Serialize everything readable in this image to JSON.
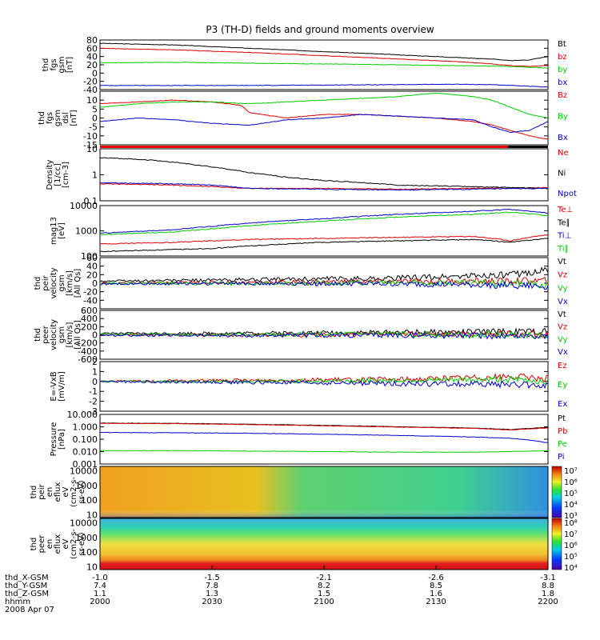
{
  "title": "P3 (TH-D) fields and ground moments overview",
  "chart_data": [
    {
      "id": "fgs_gsm",
      "type": "line",
      "ylabel": [
        "thd",
        "fgs",
        "gsm",
        "[nT]"
      ],
      "ylim": [
        -40,
        80
      ],
      "yticks": [
        80,
        60,
        40,
        20,
        0,
        -20,
        -40
      ],
      "x_range": [
        0,
        120
      ],
      "series": [
        {
          "name": "Bt",
          "color": "#000000",
          "x": [
            0,
            20,
            40,
            60,
            80,
            95,
            105,
            110,
            115,
            120
          ],
          "y": [
            72,
            68,
            60,
            52,
            44,
            38,
            34,
            30,
            32,
            40
          ]
        },
        {
          "name": "bz",
          "color": "#dd0000",
          "x": [
            0,
            20,
            40,
            60,
            80,
            95,
            105,
            110,
            115,
            120
          ],
          "y": [
            60,
            56,
            50,
            42,
            34,
            28,
            22,
            18,
            16,
            18
          ]
        },
        {
          "name": "by",
          "color": "#00cc00",
          "x": [
            0,
            20,
            40,
            60,
            80,
            95,
            105,
            110,
            115,
            120
          ],
          "y": [
            25,
            26,
            24,
            22,
            20,
            18,
            17,
            16,
            14,
            12
          ]
        },
        {
          "name": "bx",
          "color": "#0000cc",
          "x": [
            0,
            20,
            40,
            60,
            80,
            95,
            105,
            110,
            115,
            120
          ],
          "y": [
            -30,
            -30,
            -30,
            -29,
            -28,
            -27,
            -28,
            -30,
            -32,
            -34
          ]
        }
      ]
    },
    {
      "id": "fgs_dsl",
      "type": "line",
      "ylabel": [
        "thd",
        "fgs",
        "gsm",
        "dsl",
        "[nT]"
      ],
      "ylim": [
        -15,
        15
      ],
      "yticks": [
        10,
        5,
        0,
        -5,
        -10,
        -15
      ],
      "x_range": [
        0,
        120
      ],
      "series": [
        {
          "name": "Bz",
          "color": "#dd0000",
          "x": [
            0,
            10,
            20,
            30,
            38,
            40,
            50,
            60,
            70,
            80,
            90,
            100,
            105,
            110,
            115,
            120
          ],
          "y": [
            8,
            9,
            10,
            9,
            7,
            3,
            0,
            2,
            2,
            1,
            0,
            -2,
            -4,
            -7,
            -10,
            -12
          ]
        },
        {
          "name": "By",
          "color": "#00cc00",
          "x": [
            0,
            10,
            20,
            30,
            40,
            50,
            60,
            70,
            80,
            90,
            95,
            100,
            105,
            110,
            115,
            120
          ],
          "y": [
            6,
            8,
            9,
            9,
            8,
            9,
            10,
            11,
            12,
            14,
            13,
            12,
            10,
            6,
            2,
            0
          ]
        },
        {
          "name": "Bx",
          "color": "#0000cc",
          "x": [
            0,
            10,
            20,
            30,
            40,
            50,
            60,
            70,
            80,
            90,
            100,
            105,
            110,
            115,
            120
          ],
          "y": [
            -2,
            0,
            -1,
            -3,
            -4,
            -1,
            0,
            2,
            1,
            0,
            -1,
            -5,
            -8,
            -7,
            -2
          ]
        }
      ]
    },
    {
      "id": "density",
      "type": "line",
      "scale": "log",
      "ylabel": [
        "Density",
        "[1/cc]",
        "[cm-3]"
      ],
      "ylim": [
        0.1,
        10
      ],
      "yticks": [
        10.0,
        1.0,
        0.1
      ],
      "x_range": [
        0,
        120
      ],
      "series": [
        {
          "name": "Ne",
          "color": "#dd0000",
          "x": [
            0,
            20,
            30,
            40,
            60,
            80,
            100,
            120
          ],
          "y": [
            0.45,
            0.4,
            0.35,
            0.3,
            0.3,
            0.28,
            0.3,
            0.32
          ]
        },
        {
          "name": "Ni",
          "color": "#000000",
          "x": [
            0,
            10,
            20,
            30,
            40,
            50,
            60,
            80,
            100,
            120
          ],
          "y": [
            4.5,
            4,
            3,
            2,
            1.2,
            0.8,
            0.6,
            0.4,
            0.35,
            0.3
          ]
        },
        {
          "name": "Npot",
          "color": "#0000cc",
          "x": [
            0,
            20,
            30,
            40,
            60,
            80,
            100,
            120
          ],
          "y": [
            0.5,
            0.45,
            0.4,
            0.3,
            0.28,
            0.26,
            0.28,
            0.3
          ]
        }
      ]
    },
    {
      "id": "temp",
      "type": "line",
      "scale": "log",
      "ylabel": [
        "mag13",
        "[eV]"
      ],
      "ylim": [
        100,
        10000
      ],
      "yticks": [
        10000,
        1000,
        100
      ],
      "x_range": [
        0,
        120
      ],
      "series": [
        {
          "name": "Te⊥",
          "color": "#dd0000",
          "x": [
            0,
            20,
            30,
            40,
            60,
            80,
            100,
            110,
            120
          ],
          "y": [
            300,
            350,
            400,
            450,
            500,
            550,
            600,
            400,
            700
          ]
        },
        {
          "name": "Te∥",
          "color": "#000000",
          "x": [
            0,
            20,
            30,
            40,
            60,
            80,
            100,
            110,
            120
          ],
          "y": [
            150,
            180,
            200,
            250,
            350,
            400,
            450,
            350,
            500
          ]
        },
        {
          "name": "Ti⊥",
          "color": "#0000cc",
          "x": [
            0,
            20,
            30,
            40,
            60,
            80,
            100,
            110,
            120
          ],
          "y": [
            800,
            1100,
            1500,
            2000,
            3000,
            4500,
            6000,
            7000,
            5000
          ]
        },
        {
          "name": "Ti∥",
          "color": "#00cc00",
          "x": [
            0,
            20,
            30,
            40,
            60,
            80,
            100,
            110,
            120
          ],
          "y": [
            700,
            900,
            1200,
            1600,
            2400,
            3500,
            4500,
            5500,
            4000
          ]
        }
      ]
    },
    {
      "id": "peir_velocity",
      "type": "line",
      "ylabel": [
        "thd",
        "peir",
        "velocity",
        "gsm",
        "[km/s]",
        "[All Qs]"
      ],
      "ylim": [
        -60,
        60
      ],
      "yticks": [
        60,
        40,
        20,
        0,
        -20,
        -40
      ],
      "x_range": [
        0,
        120
      ],
      "series": [
        {
          "name": "Vt",
          "color": "#000000",
          "x": [
            0,
            40,
            80,
            110,
            120
          ],
          "y": [
            5,
            8,
            12,
            20,
            30
          ]
        },
        {
          "name": "Vz",
          "color": "#dd0000",
          "x": [
            0,
            40,
            80,
            110,
            120
          ],
          "y": [
            0,
            2,
            4,
            5,
            6
          ]
        },
        {
          "name": "Vy",
          "color": "#00cc00",
          "x": [
            0,
            40,
            80,
            110,
            120
          ],
          "y": [
            0,
            -1,
            2,
            0,
            -4
          ]
        },
        {
          "name": "Vx",
          "color": "#0000cc",
          "x": [
            0,
            40,
            80,
            110,
            120
          ],
          "y": [
            -2,
            0,
            -2,
            -5,
            -8
          ]
        }
      ]
    },
    {
      "id": "peer_velocity",
      "type": "line",
      "ylabel": [
        "thd",
        "peer",
        "velocity",
        "gsm",
        "[km/s]",
        "[All Qs]"
      ],
      "ylim": [
        -600,
        600
      ],
      "yticks": [
        600,
        400,
        200,
        0,
        -200,
        -400,
        -600
      ],
      "x_range": [
        0,
        120
      ],
      "series": [
        {
          "name": "Vt",
          "color": "#000000",
          "x": [
            0,
            40,
            80,
            120
          ],
          "y": [
            30,
            40,
            60,
            80
          ]
        },
        {
          "name": "Vz",
          "color": "#dd0000",
          "x": [
            0,
            40,
            80,
            120
          ],
          "y": [
            0,
            -10,
            10,
            20
          ]
        },
        {
          "name": "Vy",
          "color": "#00cc00",
          "x": [
            0,
            40,
            80,
            120
          ],
          "y": [
            10,
            0,
            20,
            -10
          ]
        },
        {
          "name": "Vx",
          "color": "#0000cc",
          "x": [
            0,
            40,
            80,
            120
          ],
          "y": [
            -10,
            -20,
            -10,
            -30
          ]
        }
      ]
    },
    {
      "id": "efield",
      "type": "line",
      "ylabel": [
        "E=-VxB",
        "[mV/m]"
      ],
      "ylim": [
        -3,
        2
      ],
      "yticks": [
        2,
        1,
        0,
        -1,
        -2,
        -3
      ],
      "x_range": [
        0,
        120
      ],
      "series": [
        {
          "name": "Ez",
          "color": "#dd0000",
          "x": [
            0,
            40,
            80,
            110,
            120
          ],
          "y": [
            0,
            0.1,
            0.2,
            0.5,
            0.3
          ]
        },
        {
          "name": "Ey",
          "color": "#00cc00",
          "x": [
            0,
            40,
            80,
            110,
            120
          ],
          "y": [
            0,
            0,
            0.1,
            0.2,
            0
          ]
        },
        {
          "name": "Ex",
          "color": "#0000cc",
          "x": [
            0,
            40,
            80,
            110,
            120
          ],
          "y": [
            0,
            -0.1,
            -0.2,
            -0.3,
            -0.4
          ]
        }
      ]
    },
    {
      "id": "pressure",
      "type": "line",
      "scale": "log",
      "ylabel": [
        "Pressure",
        "[nPa]"
      ],
      "ylim": [
        0.001,
        10
      ],
      "yticks": [
        10.0,
        1.0,
        0.1,
        0.01,
        0.001
      ],
      "ytick_labels": [
        "10.000",
        "1.000",
        "0.100",
        "0.010",
        "0.001"
      ],
      "x_range": [
        0,
        120
      ],
      "series": [
        {
          "name": "Pt",
          "color": "#000000",
          "x": [
            0,
            20,
            40,
            60,
            80,
            100,
            110,
            120
          ],
          "y": [
            2.0,
            1.9,
            1.6,
            1.3,
            1.0,
            0.8,
            0.6,
            0.9
          ]
        },
        {
          "name": "Pb",
          "color": "#dd0000",
          "x": [
            0,
            20,
            40,
            60,
            80,
            100,
            110,
            120
          ],
          "y": [
            1.9,
            1.8,
            1.5,
            1.2,
            0.95,
            0.75,
            0.55,
            0.8
          ]
        },
        {
          "name": "Pe",
          "color": "#00cc00",
          "x": [
            0,
            20,
            40,
            60,
            80,
            100,
            110,
            120
          ],
          "y": [
            0.012,
            0.012,
            0.011,
            0.01,
            0.009,
            0.009,
            0.01,
            0.012
          ]
        },
        {
          "name": "Pi",
          "color": "#0000cc",
          "x": [
            0,
            20,
            40,
            60,
            80,
            100,
            110,
            120
          ],
          "y": [
            0.35,
            0.33,
            0.3,
            0.25,
            0.2,
            0.15,
            0.12,
            0.05
          ]
        }
      ]
    },
    {
      "id": "peir_spec",
      "type": "heatmap",
      "ylabel": [
        "thd",
        "peir",
        "en",
        "eflux",
        "eV",
        "(cm2-s-",
        "sr-eV)"
      ],
      "yticks": [
        10000,
        1000,
        100,
        10
      ],
      "colorbar_ticks": [
        "10⁷",
        "10⁶",
        "10⁵",
        "10⁴",
        "10³"
      ]
    },
    {
      "id": "peer_spec",
      "type": "heatmap",
      "ylabel": [
        "thd",
        "peer",
        "en",
        "eflux",
        "eV",
        "(cm2-s-",
        "sr-eV)"
      ],
      "yticks": [
        10000,
        1000,
        100,
        10
      ],
      "colorbar_ticks": [
        "10⁸",
        "10⁷",
        "10⁶",
        "10⁵",
        "10⁴"
      ]
    }
  ],
  "x_axis": {
    "row_labels": [
      "thd_X-GSM",
      "thd_Y-GSM",
      "thd_Z-GSM",
      "hhmm",
      "2008 Apr 07"
    ],
    "ticks": [
      {
        "x": "-1.0",
        "y": "7.4",
        "z": "1.1",
        "t": "2000"
      },
      {
        "x": "-1.5",
        "y": "7.8",
        "z": "1.3",
        "t": "2030"
      },
      {
        "x": "-2.1",
        "y": "8.2",
        "z": "1.5",
        "t": "2100"
      },
      {
        "x": "-2.6",
        "y": "8.5",
        "z": "1.6",
        "t": "2130"
      },
      {
        "x": "-3.1",
        "y": "8.8",
        "z": "1.8",
        "t": "2200"
      }
    ]
  }
}
